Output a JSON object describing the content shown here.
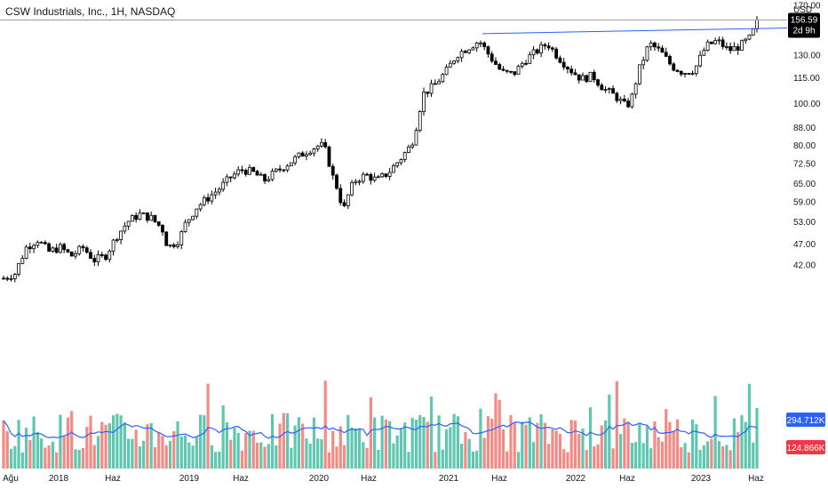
{
  "header": {
    "title": "CSW Industrials, Inc., 1H, NASDAQ",
    "currency": "USD"
  },
  "chart_data": {
    "type": "candlestick",
    "price_axis": {
      "scale": "log",
      "ticks": [
        "170.00",
        "130.00",
        "115.00",
        "100.00",
        "88.00",
        "80.00",
        "72.50",
        "65.00",
        "59.00",
        "53.00",
        "47.00",
        "42.00"
      ],
      "tick_values": [
        170,
        130,
        115,
        100,
        88,
        80,
        72.5,
        65,
        59,
        53,
        47,
        42
      ]
    },
    "time_axis": {
      "labels": [
        "Ağu",
        "2018",
        "Haz",
        "2019",
        "Haz",
        "2020",
        "Haz",
        "2021",
        "Haz",
        "2022",
        "Haz",
        "2023",
        "Haz"
      ]
    },
    "last_price": {
      "value": 156.59,
      "label": "156.59",
      "countdown": "2d 9h",
      "color": "#000000"
    },
    "resistance_line": {
      "from": 145.5,
      "to": 150.0,
      "color": "#2962ff"
    },
    "price_path": [
      [
        0,
        39
      ],
      [
        2,
        40
      ],
      [
        4,
        46
      ],
      [
        6,
        48
      ],
      [
        8,
        45
      ],
      [
        10,
        46
      ],
      [
        12,
        44
      ],
      [
        14,
        46
      ],
      [
        16,
        43
      ],
      [
        18,
        44
      ],
      [
        20,
        49
      ],
      [
        22,
        53
      ],
      [
        24,
        55
      ],
      [
        26,
        54
      ],
      [
        28,
        51
      ],
      [
        29,
        46
      ],
      [
        31,
        48
      ],
      [
        32,
        52
      ],
      [
        34,
        57
      ],
      [
        36,
        60
      ],
      [
        38,
        63
      ],
      [
        40,
        67
      ],
      [
        42,
        70
      ],
      [
        44,
        69
      ],
      [
        46,
        66
      ],
      [
        48,
        69
      ],
      [
        50,
        72
      ],
      [
        52,
        75
      ],
      [
        54,
        78
      ],
      [
        56,
        80
      ],
      [
        57,
        77
      ],
      [
        58,
        68
      ],
      [
        59,
        63
      ],
      [
        60,
        56
      ],
      [
        61,
        62
      ],
      [
        62,
        66
      ],
      [
        64,
        68
      ],
      [
        66,
        66
      ],
      [
        68,
        69
      ],
      [
        70,
        74
      ],
      [
        72,
        80
      ],
      [
        73,
        90
      ],
      [
        74,
        105
      ],
      [
        76,
        110
      ],
      [
        78,
        118
      ],
      [
        80,
        130
      ],
      [
        82,
        135
      ],
      [
        84,
        140
      ],
      [
        86,
        128
      ],
      [
        88,
        118
      ],
      [
        90,
        117
      ],
      [
        92,
        126
      ],
      [
        94,
        132
      ],
      [
        96,
        138
      ],
      [
        98,
        128
      ],
      [
        100,
        120
      ],
      [
        102,
        114
      ],
      [
        104,
        116
      ],
      [
        106,
        108
      ],
      [
        108,
        104
      ],
      [
        110,
        98
      ],
      [
        111,
        104
      ],
      [
        112,
        118
      ],
      [
        114,
        138
      ],
      [
        116,
        132
      ],
      [
        118,
        122
      ],
      [
        120,
        118
      ],
      [
        122,
        120
      ],
      [
        124,
        136
      ],
      [
        126,
        140
      ],
      [
        128,
        133
      ],
      [
        130,
        136
      ],
      [
        132,
        143
      ],
      [
        133,
        156.59
      ]
    ],
    "volume": {
      "up_color": "#5fc6b0",
      "down_color": "#f28b86",
      "ma_color": "#2962ff",
      "ma_label": "294.712K",
      "last_label": "124.866K"
    },
    "colors": {
      "up": "#ffffff",
      "down": "#000000",
      "wick": "#000000"
    }
  }
}
